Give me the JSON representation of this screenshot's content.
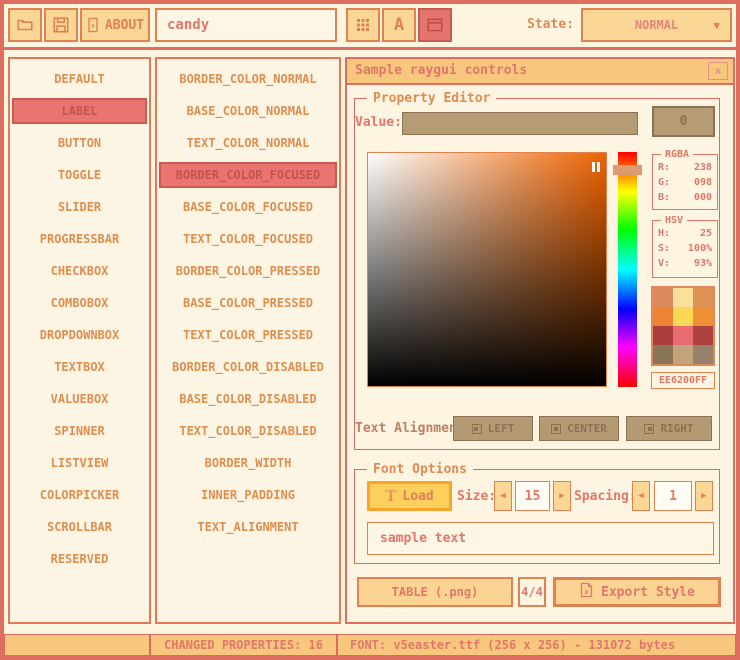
{
  "icons": {
    "chevron_down": "▼",
    "arrow_left": "◀",
    "arrow_right": "▶",
    "close": "×",
    "font_letter": "A",
    "text_tool": "T"
  },
  "colors": {
    "frame_red": "#df6d60",
    "accent_orange": "#e0824f",
    "button_bg": "#fbd795",
    "titlebar_bg": "#f8c77e",
    "selected_red": "#ec7470",
    "tan": "#b59c75"
  },
  "toolbar": {
    "about_label": "ABOUT",
    "style_name_value": "candy",
    "state_label": "State:",
    "state_value": "NORMAL"
  },
  "controls_list": {
    "selected_index": 1,
    "items": [
      "DEFAULT",
      "LABEL",
      "BUTTON",
      "TOGGLE",
      "SLIDER",
      "PROGRESSBAR",
      "CHECKBOX",
      "COMBOBOX",
      "DROPDOWNBOX",
      "TEXTBOX",
      "VALUEBOX",
      "SPINNER",
      "LISTVIEW",
      "COLORPICKER",
      "SCROLLBAR",
      "RESERVED"
    ]
  },
  "properties_list": {
    "selected_index": 3,
    "items": [
      "BORDER_COLOR_NORMAL",
      "BASE_COLOR_NORMAL",
      "TEXT_COLOR_NORMAL",
      "BORDER_COLOR_FOCUSED",
      "BASE_COLOR_FOCUSED",
      "TEXT_COLOR_FOCUSED",
      "BORDER_COLOR_PRESSED",
      "BASE_COLOR_PRESSED",
      "TEXT_COLOR_PRESSED",
      "BORDER_COLOR_DISABLED",
      "BASE_COLOR_DISABLED",
      "TEXT_COLOR_DISABLED",
      "BORDER_WIDTH",
      "INNER_PADDING",
      "TEXT_ALIGNMENT"
    ]
  },
  "sample_window": {
    "title": "Sample raygui controls",
    "property_editor": {
      "label": "Property Editor",
      "value_label": "Value:",
      "value": "0"
    },
    "color_picker": {
      "selected_color_hex": "#EE6200",
      "hex_value": "EE6200FF",
      "rgba": {
        "title": "RGBA",
        "rows": [
          {
            "label": "R:",
            "value": "238"
          },
          {
            "label": "G:",
            "value": "098"
          },
          {
            "label": "B:",
            "value": "000"
          }
        ]
      },
      "hsv": {
        "title": "HSV",
        "rows": [
          {
            "label": "H:",
            "value": "25"
          },
          {
            "label": "S:",
            "value": "100%"
          },
          {
            "label": "V:",
            "value": "93%"
          }
        ]
      },
      "swatches": [
        "#de8a61",
        "#fbdf9d",
        "#de9355",
        "#ee8335",
        "#f9d855",
        "#ef9035",
        "#a93e3d",
        "#e76b70",
        "#ad4140",
        "#8b7557",
        "#c2a37b",
        "#96816b"
      ]
    },
    "text_alignment": {
      "label": "Text Alignment",
      "left": "LEFT",
      "center": "CENTER",
      "right": "RIGHT"
    },
    "font_options": {
      "label": "Font Options",
      "load_button": "Load",
      "size_label": "Size:",
      "size_value": "15",
      "spacing_label": "Spacing:",
      "spacing_value": "1",
      "sample_text": "sample text"
    },
    "export_row": {
      "table_format": "TABLE (.png)",
      "pages": "4/4",
      "export_button": "Export Style"
    }
  },
  "status_bar": {
    "changed_properties": "CHANGED PROPERTIES: 16",
    "font_info": "FONT: v5easter.ttf (256 x 256) - 131072 bytes"
  }
}
